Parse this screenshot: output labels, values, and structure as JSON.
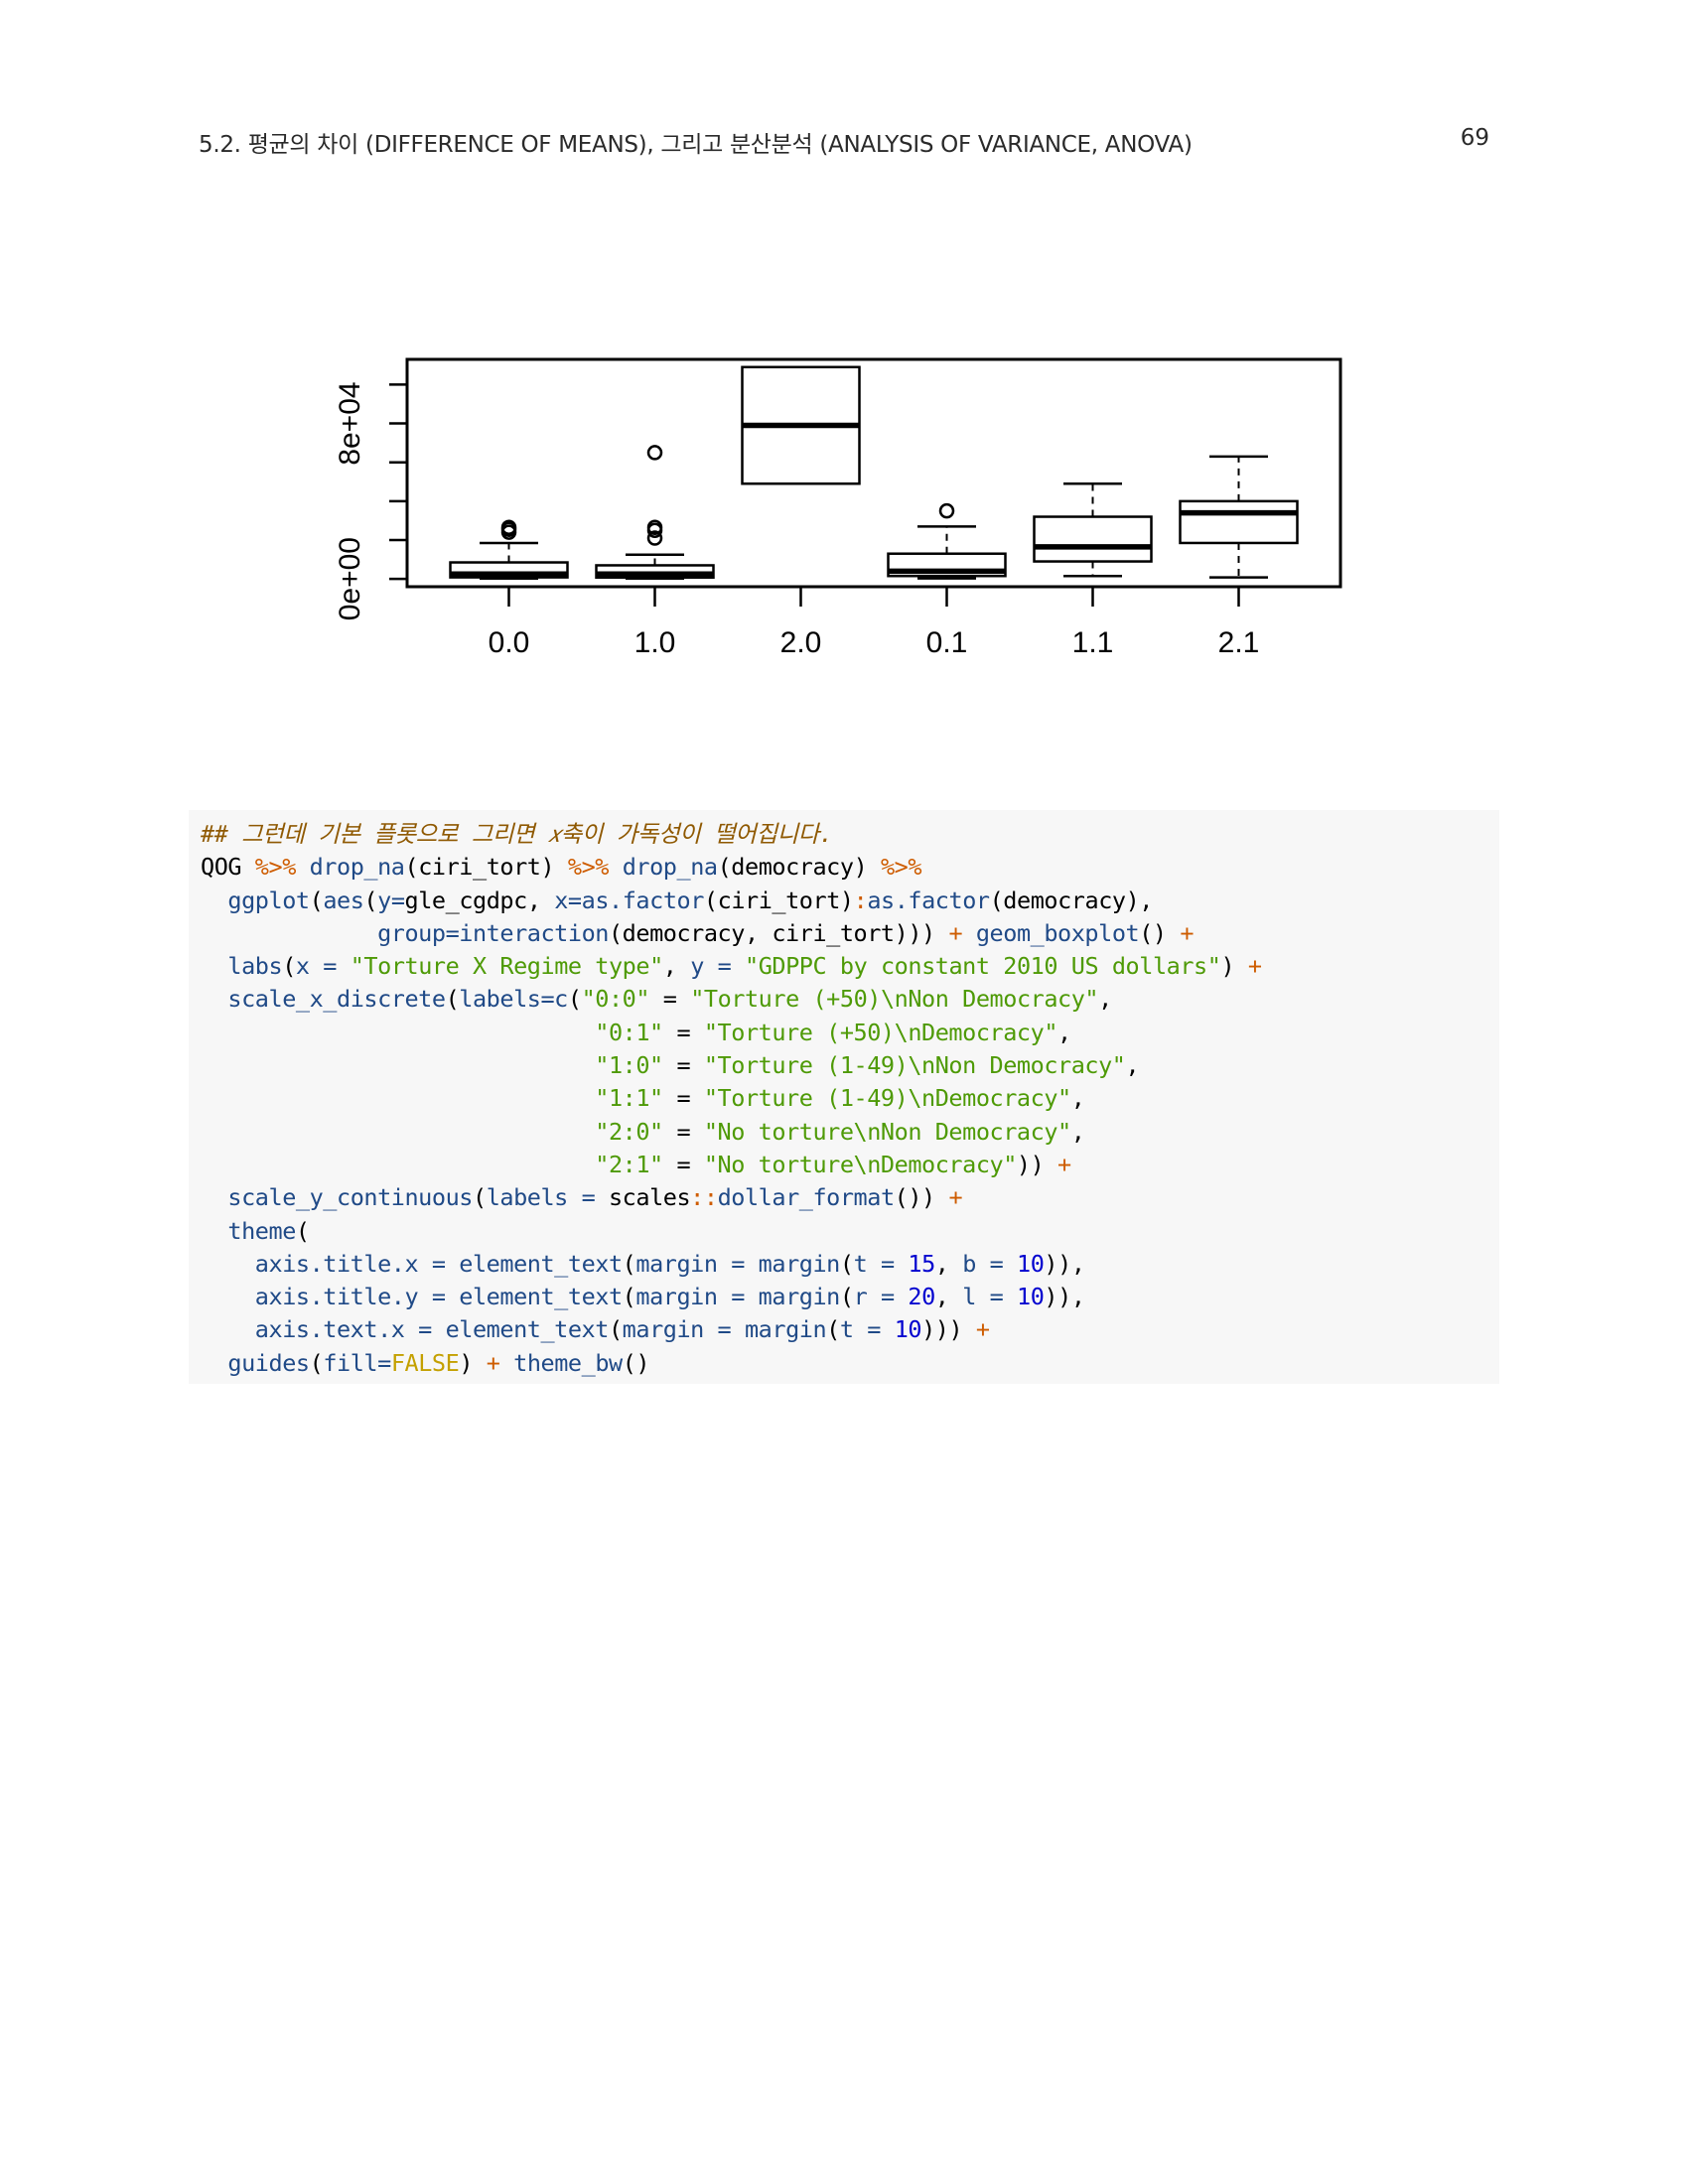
{
  "running_head": {
    "section": "5.2.  평균의 차이 (DIFFERENCE OF MEANS), 그리고 분산분석 (ANALYSIS OF VARIANCE, ANOVA)",
    "page_number": "69"
  },
  "chart_data": {
    "type": "box",
    "title": "",
    "xlabel": "",
    "ylabel": "",
    "categories": [
      "0.0",
      "1.0",
      "2.0",
      "0.1",
      "1.1",
      "2.1"
    ],
    "y_tick_labels": [
      "0e+00",
      "8e+04"
    ],
    "y_ticks": [
      0,
      20000,
      40000,
      60000,
      80000,
      100000
    ],
    "ylim": [
      -4000,
      114000
    ],
    "boxes": [
      {
        "category": "0.0",
        "whisker_low": 200,
        "q1": 800,
        "median": 2500,
        "q3": 8500,
        "whisker_high": 18500,
        "outliers": [
          24000,
          25500,
          26500
        ]
      },
      {
        "category": "1.0",
        "whisker_low": 200,
        "q1": 700,
        "median": 2500,
        "q3": 7000,
        "whisker_high": 12500,
        "outliers": [
          21000,
          25000,
          26500,
          65000
        ]
      },
      {
        "category": "2.0",
        "whisker_low": null,
        "q1": 49000,
        "median": 79000,
        "q3": 109000,
        "whisker_high": null,
        "outliers": []
      },
      {
        "category": "0.1",
        "whisker_low": 300,
        "q1": 1500,
        "median": 4000,
        "q3": 13000,
        "whisker_high": 27000,
        "outliers": [
          35000
        ]
      },
      {
        "category": "1.1",
        "whisker_low": 1500,
        "q1": 9000,
        "median": 16500,
        "q3": 32000,
        "whisker_high": 49000,
        "outliers": []
      },
      {
        "category": "2.1",
        "whisker_low": 800,
        "q1": 18500,
        "median": 34000,
        "q3": 40000,
        "whisker_high": 63000,
        "outliers": []
      }
    ]
  },
  "code": [
    [
      {
        "t": "## 그런데 기본 플롯으로 그리면 𝑥축이 가독성이 떨어집니다.",
        "c": "comment"
      }
    ],
    [
      {
        "t": "QOG ",
        "c": "plain"
      },
      {
        "t": "%>%",
        "c": "op"
      },
      {
        "t": " ",
        "c": "plain"
      },
      {
        "t": "drop_na",
        "c": "func"
      },
      {
        "t": "(ciri_tort) ",
        "c": "plain"
      },
      {
        "t": "%>%",
        "c": "op"
      },
      {
        "t": " ",
        "c": "plain"
      },
      {
        "t": "drop_na",
        "c": "func"
      },
      {
        "t": "(democracy) ",
        "c": "plain"
      },
      {
        "t": "%>%",
        "c": "op"
      }
    ],
    [
      {
        "t": "  ",
        "c": "plain"
      },
      {
        "t": "ggplot",
        "c": "func"
      },
      {
        "t": "(",
        "c": "plain"
      },
      {
        "t": "aes",
        "c": "func"
      },
      {
        "t": "(",
        "c": "plain"
      },
      {
        "t": "y=",
        "c": "func"
      },
      {
        "t": "gle_cgdpc, ",
        "c": "plain"
      },
      {
        "t": "x=",
        "c": "func"
      },
      {
        "t": "as.factor",
        "c": "func"
      },
      {
        "t": "(ciri_tort)",
        "c": "plain"
      },
      {
        "t": ":",
        "c": "op"
      },
      {
        "t": "as.factor",
        "c": "func"
      },
      {
        "t": "(democracy),",
        "c": "plain"
      }
    ],
    [
      {
        "t": "             ",
        "c": "plain"
      },
      {
        "t": "group=",
        "c": "func"
      },
      {
        "t": "interaction",
        "c": "func"
      },
      {
        "t": "(democracy, ciri_tort))) ",
        "c": "plain"
      },
      {
        "t": "+",
        "c": "op"
      },
      {
        "t": " ",
        "c": "plain"
      },
      {
        "t": "geom_boxplot",
        "c": "func"
      },
      {
        "t": "() ",
        "c": "plain"
      },
      {
        "t": "+",
        "c": "op"
      }
    ],
    [
      {
        "t": "  ",
        "c": "plain"
      },
      {
        "t": "labs",
        "c": "func"
      },
      {
        "t": "(",
        "c": "plain"
      },
      {
        "t": "x =",
        "c": "func"
      },
      {
        "t": " ",
        "c": "plain"
      },
      {
        "t": "\"Torture X Regime type\"",
        "c": "str"
      },
      {
        "t": ", ",
        "c": "plain"
      },
      {
        "t": "y =",
        "c": "func"
      },
      {
        "t": " ",
        "c": "plain"
      },
      {
        "t": "\"GDPPC by constant 2010 US dollars\"",
        "c": "str"
      },
      {
        "t": ") ",
        "c": "plain"
      },
      {
        "t": "+",
        "c": "op"
      }
    ],
    [
      {
        "t": "  ",
        "c": "plain"
      },
      {
        "t": "scale_x_discrete",
        "c": "func"
      },
      {
        "t": "(",
        "c": "plain"
      },
      {
        "t": "labels=",
        "c": "func"
      },
      {
        "t": "c",
        "c": "func"
      },
      {
        "t": "(",
        "c": "plain"
      },
      {
        "t": "\"0:0\"",
        "c": "str"
      },
      {
        "t": " = ",
        "c": "plain"
      },
      {
        "t": "\"Torture (+50)\\nNon Democracy\"",
        "c": "str"
      },
      {
        "t": ",",
        "c": "plain"
      }
    ],
    [
      {
        "t": "                             ",
        "c": "plain"
      },
      {
        "t": "\"0:1\"",
        "c": "str"
      },
      {
        "t": " = ",
        "c": "plain"
      },
      {
        "t": "\"Torture (+50)\\nDemocracy\"",
        "c": "str"
      },
      {
        "t": ",",
        "c": "plain"
      }
    ],
    [
      {
        "t": "                             ",
        "c": "plain"
      },
      {
        "t": "\"1:0\"",
        "c": "str"
      },
      {
        "t": " = ",
        "c": "plain"
      },
      {
        "t": "\"Torture (1-49)\\nNon Democracy\"",
        "c": "str"
      },
      {
        "t": ",",
        "c": "plain"
      }
    ],
    [
      {
        "t": "                             ",
        "c": "plain"
      },
      {
        "t": "\"1:1\"",
        "c": "str"
      },
      {
        "t": " = ",
        "c": "plain"
      },
      {
        "t": "\"Torture (1-49)\\nDemocracy\"",
        "c": "str"
      },
      {
        "t": ",",
        "c": "plain"
      }
    ],
    [
      {
        "t": "                             ",
        "c": "plain"
      },
      {
        "t": "\"2:0\"",
        "c": "str"
      },
      {
        "t": " = ",
        "c": "plain"
      },
      {
        "t": "\"No torture\\nNon Democracy\"",
        "c": "str"
      },
      {
        "t": ",",
        "c": "plain"
      }
    ],
    [
      {
        "t": "                             ",
        "c": "plain"
      },
      {
        "t": "\"2:1\"",
        "c": "str"
      },
      {
        "t": " = ",
        "c": "plain"
      },
      {
        "t": "\"No torture\\nDemocracy\"",
        "c": "str"
      },
      {
        "t": ")) ",
        "c": "plain"
      },
      {
        "t": "+",
        "c": "op"
      }
    ],
    [
      {
        "t": "  ",
        "c": "plain"
      },
      {
        "t": "scale_y_continuous",
        "c": "func"
      },
      {
        "t": "(",
        "c": "plain"
      },
      {
        "t": "labels =",
        "c": "func"
      },
      {
        "t": " scales",
        "c": "plain"
      },
      {
        "t": "::",
        "c": "op"
      },
      {
        "t": "dollar_format",
        "c": "func"
      },
      {
        "t": "()) ",
        "c": "plain"
      },
      {
        "t": "+",
        "c": "op"
      }
    ],
    [
      {
        "t": "  ",
        "c": "plain"
      },
      {
        "t": "theme",
        "c": "func"
      },
      {
        "t": "(",
        "c": "plain"
      }
    ],
    [
      {
        "t": "    ",
        "c": "plain"
      },
      {
        "t": "axis.title.x =",
        "c": "func"
      },
      {
        "t": " ",
        "c": "plain"
      },
      {
        "t": "element_text",
        "c": "func"
      },
      {
        "t": "(",
        "c": "plain"
      },
      {
        "t": "margin =",
        "c": "func"
      },
      {
        "t": " ",
        "c": "plain"
      },
      {
        "t": "margin",
        "c": "func"
      },
      {
        "t": "(",
        "c": "plain"
      },
      {
        "t": "t =",
        "c": "func"
      },
      {
        "t": " ",
        "c": "plain"
      },
      {
        "t": "15",
        "c": "num"
      },
      {
        "t": ", ",
        "c": "plain"
      },
      {
        "t": "b =",
        "c": "func"
      },
      {
        "t": " ",
        "c": "plain"
      },
      {
        "t": "10",
        "c": "num"
      },
      {
        "t": ")),",
        "c": "plain"
      }
    ],
    [
      {
        "t": "    ",
        "c": "plain"
      },
      {
        "t": "axis.title.y =",
        "c": "func"
      },
      {
        "t": " ",
        "c": "plain"
      },
      {
        "t": "element_text",
        "c": "func"
      },
      {
        "t": "(",
        "c": "plain"
      },
      {
        "t": "margin =",
        "c": "func"
      },
      {
        "t": " ",
        "c": "plain"
      },
      {
        "t": "margin",
        "c": "func"
      },
      {
        "t": "(",
        "c": "plain"
      },
      {
        "t": "r =",
        "c": "func"
      },
      {
        "t": " ",
        "c": "plain"
      },
      {
        "t": "20",
        "c": "num"
      },
      {
        "t": ", ",
        "c": "plain"
      },
      {
        "t": "l =",
        "c": "func"
      },
      {
        "t": " ",
        "c": "plain"
      },
      {
        "t": "10",
        "c": "num"
      },
      {
        "t": ")),",
        "c": "plain"
      }
    ],
    [
      {
        "t": "    ",
        "c": "plain"
      },
      {
        "t": "axis.text.x =",
        "c": "func"
      },
      {
        "t": " ",
        "c": "plain"
      },
      {
        "t": "element_text",
        "c": "func"
      },
      {
        "t": "(",
        "c": "plain"
      },
      {
        "t": "margin =",
        "c": "func"
      },
      {
        "t": " ",
        "c": "plain"
      },
      {
        "t": "margin",
        "c": "func"
      },
      {
        "t": "(",
        "c": "plain"
      },
      {
        "t": "t =",
        "c": "func"
      },
      {
        "t": " ",
        "c": "plain"
      },
      {
        "t": "10",
        "c": "num"
      },
      {
        "t": "))) ",
        "c": "plain"
      },
      {
        "t": "+",
        "c": "op"
      }
    ],
    [
      {
        "t": "  ",
        "c": "plain"
      },
      {
        "t": "guides",
        "c": "func"
      },
      {
        "t": "(",
        "c": "plain"
      },
      {
        "t": "fill=",
        "c": "func"
      },
      {
        "t": "FALSE",
        "c": "const"
      },
      {
        "t": ") ",
        "c": "plain"
      },
      {
        "t": "+",
        "c": "op"
      },
      {
        "t": " ",
        "c": "plain"
      },
      {
        "t": "theme_bw",
        "c": "func"
      },
      {
        "t": "()",
        "c": "plain"
      }
    ]
  ]
}
